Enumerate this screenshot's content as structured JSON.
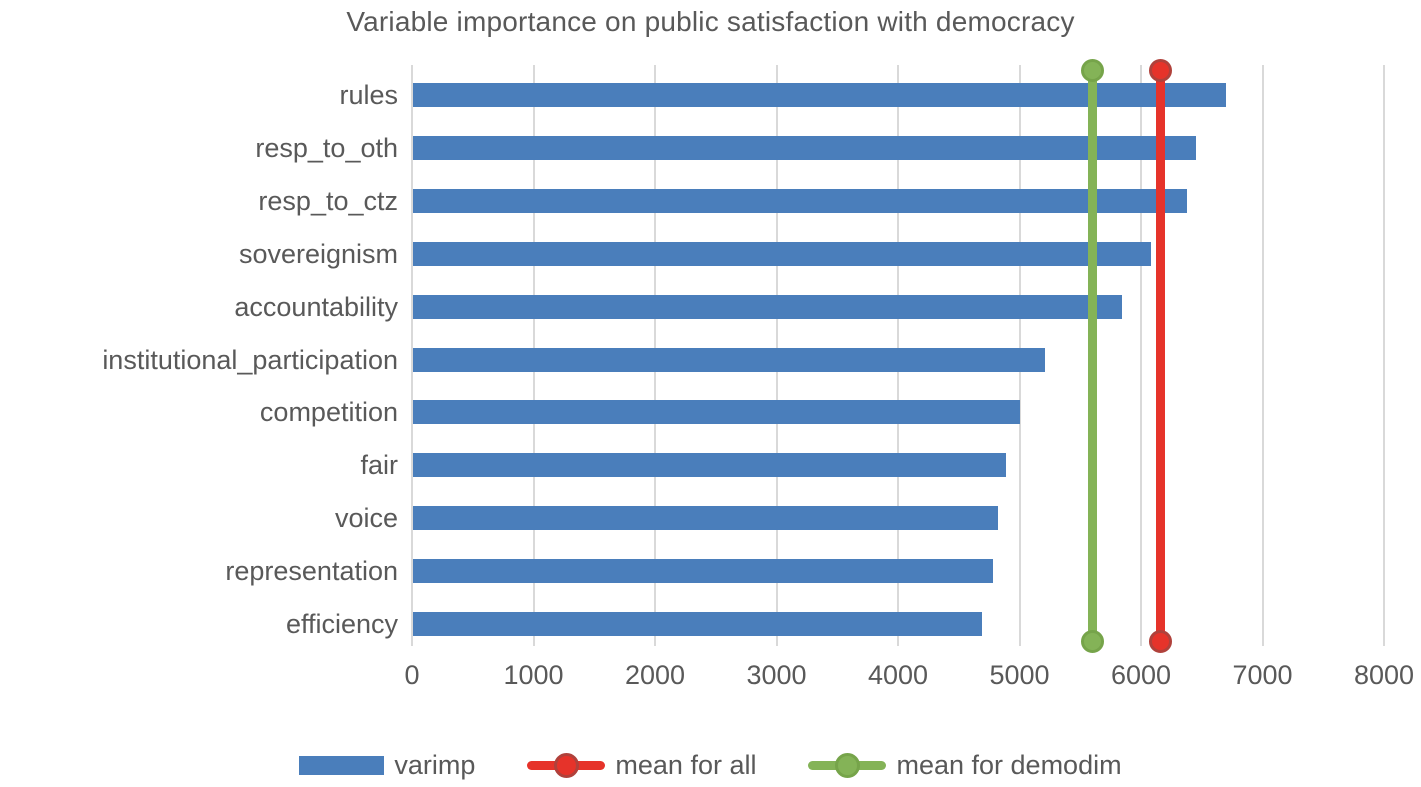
{
  "chart_data": {
    "type": "bar",
    "orientation": "horizontal",
    "title": "Variable importance on public satisfaction with democracy",
    "categories": [
      "rules",
      "resp_to_oth",
      "resp_to_ctz",
      "sovereignism",
      "accountability",
      "institutional_participation",
      "competition",
      "fair",
      "voice",
      "representation",
      "efficiency"
    ],
    "series": [
      {
        "name": "varimp",
        "type": "bar",
        "color": "#4a7ebb",
        "values": [
          6700,
          6450,
          6380,
          6080,
          5840,
          5210,
          5000,
          4890,
          4820,
          4780,
          4690
        ]
      },
      {
        "name": "mean for all",
        "type": "vline",
        "color": "#e6332a",
        "ring_color": "#b0413b",
        "value": 6160
      },
      {
        "name": "mean for demodim",
        "type": "vline",
        "color": "#84b357",
        "ring_color": "#76a44a",
        "value": 5600
      }
    ],
    "xlim": [
      0,
      8000
    ],
    "xticks": [
      0,
      1000,
      2000,
      3000,
      4000,
      5000,
      6000,
      7000,
      8000
    ],
    "grid": "vertical",
    "gridline_color": "#d9d9d9",
    "text_color": "#595959",
    "legend_position": "bottom"
  }
}
